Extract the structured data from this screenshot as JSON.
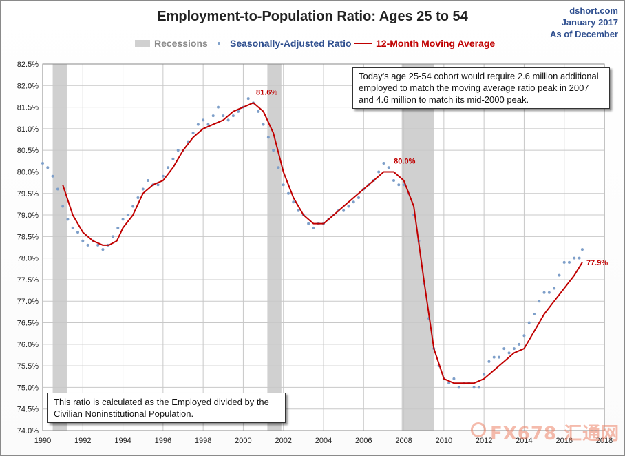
{
  "header": {
    "title": "Employment-to-Population Ratio: Ages 25 to 54",
    "source_line1": "dshort.com",
    "source_line2": "January 2017",
    "source_line3": "As of December"
  },
  "legend": {
    "recessions": "Recessions",
    "ratio": "Seasonally-Adjusted Ratio",
    "moving_average": "12-Month Moving Average"
  },
  "notes": {
    "top": "Today's age 25-54  cohort would require 2.6 million additional employed to match the moving average ratio peak in 2007  and 4.6 million to match its mid-2000 peak.",
    "bottom": "This ratio is calculated as the Employed divided by the Civilian Noninstitutional Population."
  },
  "watermark": "FX678 汇通网",
  "colors": {
    "ratio_dots": "#7e9fc9",
    "moving_average": "#c00000",
    "recession_band": "#d0d0d0",
    "legend_text_blue": "#2f4f8f",
    "legend_text_red": "#c00000",
    "grid": "#c8c8c8"
  },
  "chart_data": {
    "type": "scatter",
    "title": "Employment-to-Population Ratio: Ages 25 to 54",
    "xlim": [
      1990,
      2018
    ],
    "ylim": [
      74.0,
      82.5
    ],
    "x_ticks": [
      "1990",
      "1992",
      "1994",
      "1996",
      "1998",
      "2000",
      "2002",
      "2004",
      "2006",
      "2008",
      "2010",
      "2012",
      "2014",
      "2016",
      "2018"
    ],
    "y_ticks": [
      "74.0%",
      "74.5%",
      "75.0%",
      "75.5%",
      "76.0%",
      "76.5%",
      "77.0%",
      "77.5%",
      "78.0%",
      "78.5%",
      "79.0%",
      "79.5%",
      "80.0%",
      "80.5%",
      "81.0%",
      "81.5%",
      "82.0%",
      "82.5%"
    ],
    "grid": true,
    "legend_position": "top",
    "recessions": [
      {
        "start": 1990.5,
        "end": 1991.2
      },
      {
        "start": 2001.2,
        "end": 2001.9
      },
      {
        "start": 2007.9,
        "end": 2009.5
      }
    ],
    "series": [
      {
        "name": "Seasonally-Adjusted Ratio",
        "style": "dots",
        "x": [
          1990.0,
          1990.25,
          1990.5,
          1990.75,
          1991.0,
          1991.25,
          1991.5,
          1991.75,
          1992.0,
          1992.25,
          1992.5,
          1992.75,
          1993.0,
          1993.25,
          1993.5,
          1993.75,
          1994.0,
          1994.25,
          1994.5,
          1994.75,
          1995.0,
          1995.25,
          1995.5,
          1995.75,
          1996.0,
          1996.25,
          1996.5,
          1996.75,
          1997.0,
          1997.25,
          1997.5,
          1997.75,
          1998.0,
          1998.25,
          1998.5,
          1998.75,
          1999.0,
          1999.25,
          1999.5,
          1999.75,
          2000.0,
          2000.25,
          2000.5,
          2000.75,
          2001.0,
          2001.25,
          2001.5,
          2001.75,
          2002.0,
          2002.25,
          2002.5,
          2002.75,
          2003.0,
          2003.25,
          2003.5,
          2003.75,
          2004.0,
          2004.25,
          2004.5,
          2004.75,
          2005.0,
          2005.25,
          2005.5,
          2005.75,
          2006.0,
          2006.25,
          2006.5,
          2006.75,
          2007.0,
          2007.25,
          2007.5,
          2007.75,
          2008.0,
          2008.25,
          2008.5,
          2008.75,
          2009.0,
          2009.25,
          2009.5,
          2009.75,
          2010.0,
          2010.25,
          2010.5,
          2010.75,
          2011.0,
          2011.25,
          2011.5,
          2011.75,
          2012.0,
          2012.25,
          2012.5,
          2012.75,
          2013.0,
          2013.25,
          2013.5,
          2013.75,
          2014.0,
          2014.25,
          2014.5,
          2014.75,
          2015.0,
          2015.25,
          2015.5,
          2015.75,
          2016.0,
          2016.25,
          2016.5,
          2016.75,
          2016.9
        ],
        "values": [
          80.2,
          80.1,
          79.9,
          79.6,
          79.2,
          78.9,
          78.7,
          78.6,
          78.4,
          78.3,
          78.4,
          78.3,
          78.2,
          78.3,
          78.5,
          78.7,
          78.9,
          79.0,
          79.2,
          79.4,
          79.6,
          79.8,
          79.7,
          79.7,
          79.9,
          80.1,
          80.3,
          80.5,
          80.5,
          80.7,
          80.9,
          81.1,
          81.2,
          81.1,
          81.3,
          81.5,
          81.3,
          81.2,
          81.3,
          81.4,
          81.5,
          81.7,
          81.6,
          81.4,
          81.1,
          80.8,
          80.5,
          80.1,
          79.7,
          79.5,
          79.3,
          79.1,
          79.0,
          78.8,
          78.7,
          78.8,
          78.8,
          78.9,
          79.0,
          79.1,
          79.1,
          79.2,
          79.3,
          79.4,
          79.6,
          79.7,
          79.8,
          80.0,
          80.2,
          80.1,
          79.8,
          79.7,
          79.7,
          79.5,
          79.0,
          78.4,
          77.4,
          76.6,
          75.9,
          75.5,
          75.2,
          75.1,
          75.2,
          75.0,
          75.1,
          75.1,
          75.0,
          75.0,
          75.3,
          75.6,
          75.7,
          75.7,
          75.9,
          75.8,
          75.9,
          76.0,
          76.2,
          76.5,
          76.7,
          77.0,
          77.2,
          77.2,
          77.3,
          77.6,
          77.9,
          77.9,
          78.0,
          78.0,
          78.2
        ]
      },
      {
        "name": "12-Month Moving Average",
        "style": "line",
        "x": [
          1991.0,
          1991.5,
          1992.0,
          1992.5,
          1993.0,
          1993.3,
          1993.7,
          1994.0,
          1994.5,
          1995.0,
          1995.5,
          1996.0,
          1996.5,
          1997.0,
          1997.5,
          1998.0,
          1998.5,
          1999.0,
          1999.5,
          2000.0,
          2000.5,
          2001.0,
          2001.5,
          2002.0,
          2002.5,
          2003.0,
          2003.5,
          2004.0,
          2004.5,
          2005.0,
          2005.5,
          2006.0,
          2006.5,
          2007.0,
          2007.5,
          2008.0,
          2008.5,
          2009.0,
          2009.5,
          2010.0,
          2010.5,
          2011.0,
          2011.5,
          2012.0,
          2012.5,
          2013.0,
          2013.5,
          2014.0,
          2014.5,
          2015.0,
          2015.5,
          2016.0,
          2016.5,
          2016.9
        ],
        "values": [
          79.7,
          79.0,
          78.6,
          78.4,
          78.3,
          78.3,
          78.4,
          78.7,
          79.0,
          79.5,
          79.7,
          79.8,
          80.1,
          80.5,
          80.8,
          81.0,
          81.1,
          81.2,
          81.4,
          81.5,
          81.6,
          81.4,
          80.9,
          80.0,
          79.4,
          79.0,
          78.8,
          78.8,
          79.0,
          79.2,
          79.4,
          79.6,
          79.8,
          80.0,
          80.0,
          79.8,
          79.2,
          77.5,
          75.9,
          75.2,
          75.1,
          75.1,
          75.1,
          75.2,
          75.4,
          75.6,
          75.8,
          75.9,
          76.3,
          76.7,
          77.0,
          77.3,
          77.6,
          77.9
        ]
      }
    ],
    "annotations": [
      {
        "x": 2000.5,
        "y": 81.6,
        "text": "81.6%"
      },
      {
        "x": 2007.3,
        "y": 80.0,
        "text": "80.0%"
      },
      {
        "x": 2016.9,
        "y": 77.9,
        "text": "77.9%"
      }
    ]
  }
}
